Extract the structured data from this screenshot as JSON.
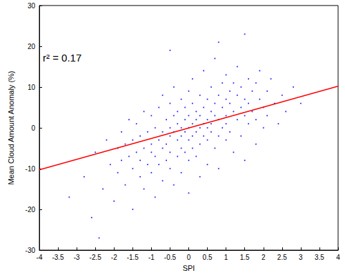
{
  "chart_data": {
    "type": "scatter",
    "x_label": "SPI",
    "y_label": "Mean Cloud Amount Anomaly (%)",
    "annotations": [
      {
        "text": "r² = 0.17"
      }
    ],
    "xlim": [
      -4,
      4
    ],
    "xticks": [
      -4,
      -3.5,
      -3,
      -2.5,
      -2,
      -1.5,
      -1,
      -0.5,
      0,
      0.5,
      1,
      1.5,
      2,
      2.5,
      3,
      3.5,
      4
    ],
    "ylim": [
      -30,
      30
    ],
    "yticks": [
      -30,
      -20,
      -10,
      0,
      10,
      20,
      30
    ],
    "grid": false,
    "series": [
      {
        "type": "scatter",
        "color": "#0000ff",
        "marker": "dot",
        "x": [
          -2.8,
          -2.5,
          -2.3,
          -2.2,
          -2.1,
          -2.0,
          -1.9,
          -1.9,
          -1.8,
          -1.8,
          -1.7,
          -1.7,
          -1.6,
          -1.6,
          -1.5,
          -1.5,
          -1.5,
          -1.4,
          -1.4,
          -1.3,
          -1.3,
          -1.3,
          -1.2,
          -1.2,
          -1.2,
          -1.1,
          -1.1,
          -1,
          -1,
          -1,
          -1,
          -0.9,
          -0.9,
          -0.9,
          -0.8,
          -0.8,
          -0.8,
          -0.7,
          -0.7,
          -0.7,
          -0.7,
          -0.6,
          -0.6,
          -0.6,
          -0.5,
          -0.5,
          -0.5,
          -0.5,
          -0.5,
          -0.4,
          -0.4,
          -0.4,
          -0.4,
          -0.3,
          -0.3,
          -0.3,
          -0.3,
          -0.2,
          -0.2,
          -0.2,
          -0.2,
          -0.2,
          -0.1,
          -0.1,
          -0.1,
          -0.1,
          0,
          0,
          0,
          0,
          0,
          0,
          0.1,
          0.1,
          0.1,
          0.1,
          0.1,
          0.2,
          0.2,
          0.2,
          0.2,
          0.3,
          0.3,
          0.3,
          0.3,
          0.3,
          0.4,
          0.4,
          0.4,
          0.4,
          0.5,
          0.5,
          0.5,
          0.5,
          0.5,
          0.6,
          0.6,
          0.6,
          0.6,
          0.7,
          0.7,
          0.7,
          0.7,
          0.8,
          0.8,
          0.8,
          0.8,
          0.9,
          0.9,
          0.9,
          1,
          1,
          1,
          1,
          1,
          1.1,
          1.1,
          1.1,
          1.2,
          1.2,
          1.2,
          1.3,
          1.3,
          1.3,
          1.4,
          1.4,
          1.4,
          1.5,
          1.5,
          1.5,
          1.6,
          1.6,
          1.6,
          1.7,
          1.7,
          1.8,
          1.8,
          1.8,
          1.9,
          1.9,
          2,
          2,
          2.1,
          2.1,
          2.2,
          2.3,
          2.4,
          2.5,
          2.6,
          2.8,
          3,
          -3.2,
          -2.6,
          -2.4,
          1.5,
          -0.5,
          0.8
        ],
        "values": [
          -12,
          -6,
          -15,
          -3,
          -9,
          -18,
          -5,
          -11,
          -1,
          -8,
          -14,
          -4,
          -7,
          2,
          -10,
          -3,
          -20,
          -6,
          1,
          -12,
          -2,
          -8,
          -5,
          4,
          -15,
          -1,
          -9,
          -4,
          3,
          -11,
          -6,
          0,
          -7,
          -17,
          -3,
          5,
          -9,
          -1,
          -5,
          8,
          -13,
          2,
          -4,
          -8,
          0,
          -2,
          6,
          -10,
          -6,
          3,
          -1,
          -14,
          10,
          -3,
          1,
          -7,
          4,
          0,
          -5,
          7,
          -2,
          -11,
          2,
          -1,
          5,
          -6,
          0,
          3,
          -3,
          9,
          -8,
          -16,
          1,
          -2,
          6,
          -5,
          12,
          2,
          -1,
          -7,
          4,
          0,
          3,
          8,
          -4,
          -12,
          1,
          5,
          -2,
          14,
          2,
          -3,
          7,
          0,
          -9,
          4,
          -1,
          10,
          1,
          3,
          -5,
          6,
          17,
          2,
          8,
          -2,
          -10,
          5,
          0,
          11,
          3,
          -3,
          7,
          13,
          1,
          6,
          -1,
          9,
          4,
          -6,
          11,
          2,
          8,
          15,
          5,
          -2,
          10,
          3,
          7,
          -8,
          6,
          12,
          1,
          9,
          4,
          2,
          11,
          -4,
          7,
          14,
          5,
          0,
          9,
          3,
          12,
          6,
          1,
          8,
          4,
          10,
          6,
          -17,
          -22,
          -27,
          23,
          19,
          21
        ]
      },
      {
        "type": "line",
        "color": "#ff0000",
        "line_style": "solid",
        "x": [
          -4,
          4
        ],
        "values": [
          -10.3,
          10.2
        ]
      }
    ]
  }
}
